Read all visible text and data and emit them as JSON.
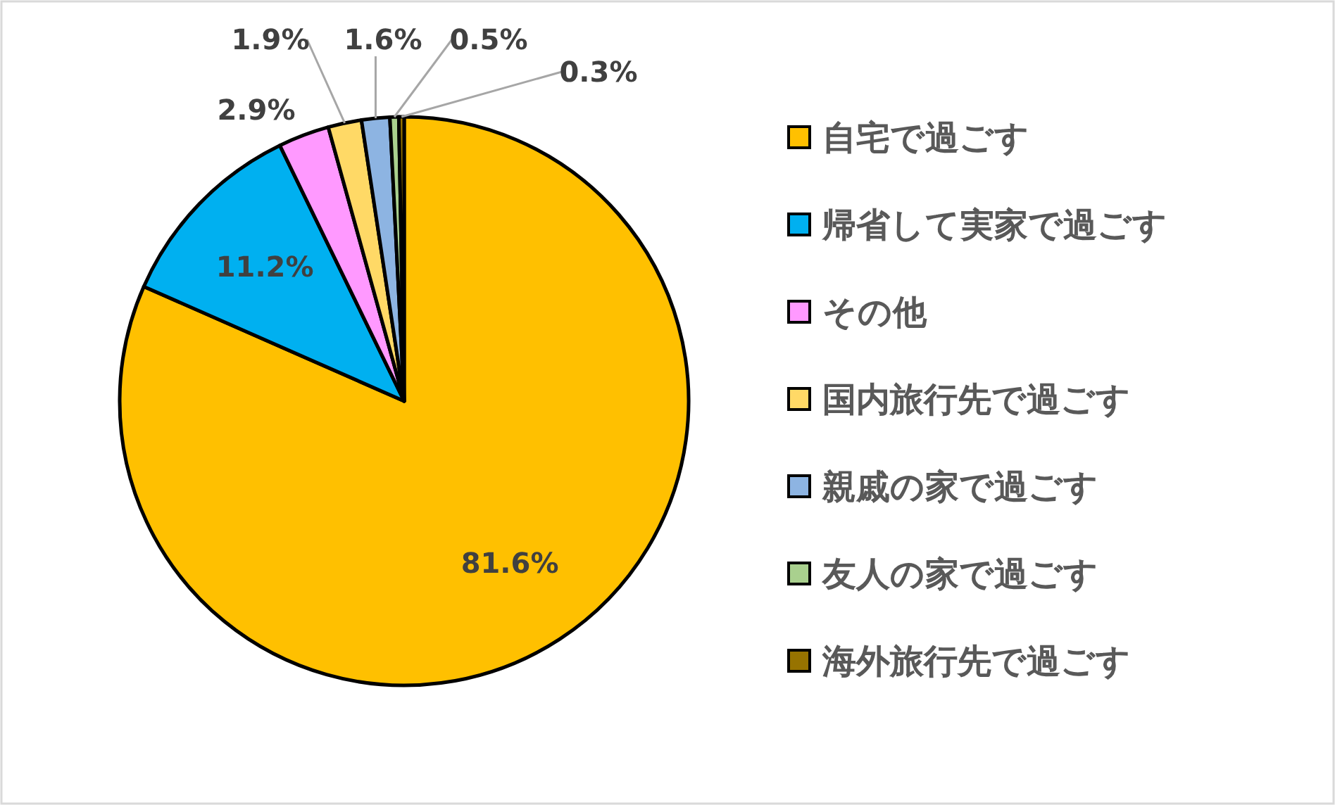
{
  "chart_data": {
    "type": "pie",
    "categories": [
      "自宅で過ごす",
      "帰省して実家で過ごす",
      "その他",
      "国内旅行先で過ごす",
      "親戚の家で過ごす",
      "友人の家で過ごす",
      "海外旅行先で過ごす"
    ],
    "values": [
      81.6,
      11.2,
      2.9,
      1.9,
      1.6,
      0.5,
      0.3
    ],
    "colors": [
      "#ffc000",
      "#00b0f0",
      "#ff99ff",
      "#ffd966",
      "#8db4e2",
      "#a9d08e",
      "#977300"
    ],
    "value_labels": [
      "81.6%",
      "11.2%",
      "2.9%",
      "1.9%",
      "1.6%",
      "0.5%",
      "0.3%"
    ],
    "legend": "right"
  }
}
